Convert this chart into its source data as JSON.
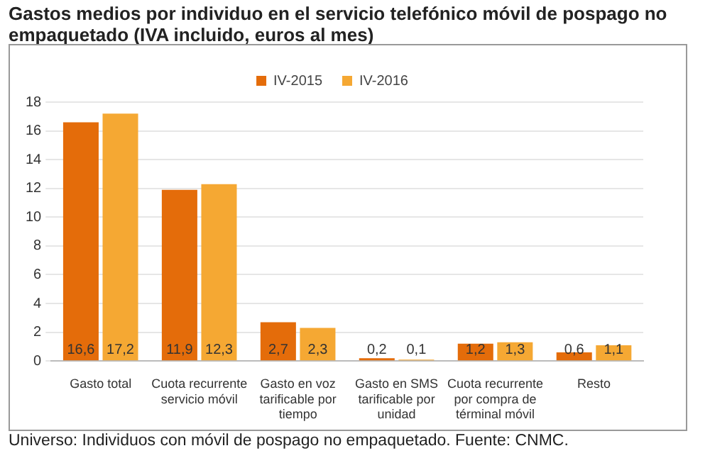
{
  "chart_data": {
    "type": "bar",
    "title": "Gastos medios por individuo en el servicio telefónico móvil de pospago no empaquetado (IVA incluido, euros al mes)",
    "categories": [
      "Gasto total",
      "Cuota recurrente servicio móvil",
      "Gasto en voz tarificable por tiempo",
      "Gasto en SMS tarificable por unidad",
      "Cuota recurrente por compra de términal móvil",
      "Resto"
    ],
    "series": [
      {
        "name": "IV-2015",
        "color": "#e46c0a",
        "values": [
          16.6,
          11.9,
          2.7,
          0.2,
          1.2,
          0.6
        ],
        "value_labels": [
          "16,6",
          "11,9",
          "2,7",
          "0,2",
          "1,2",
          "0,6"
        ]
      },
      {
        "name": "IV-2016",
        "color": "#f5a833",
        "values": [
          17.2,
          12.3,
          2.3,
          0.1,
          1.3,
          1.1
        ],
        "value_labels": [
          "17,2",
          "12,3",
          "2,3",
          "0,1",
          "1,3",
          "1,1"
        ]
      }
    ],
    "ylim": [
      0,
      18
    ],
    "yticks": [
      0,
      2,
      4,
      6,
      8,
      10,
      12,
      14,
      16,
      18
    ],
    "grid": "y",
    "legend": "top",
    "annotations": [
      "Universo: Individuos con móvil de pospago no empaquetado.  Fuente: CNMC."
    ]
  }
}
